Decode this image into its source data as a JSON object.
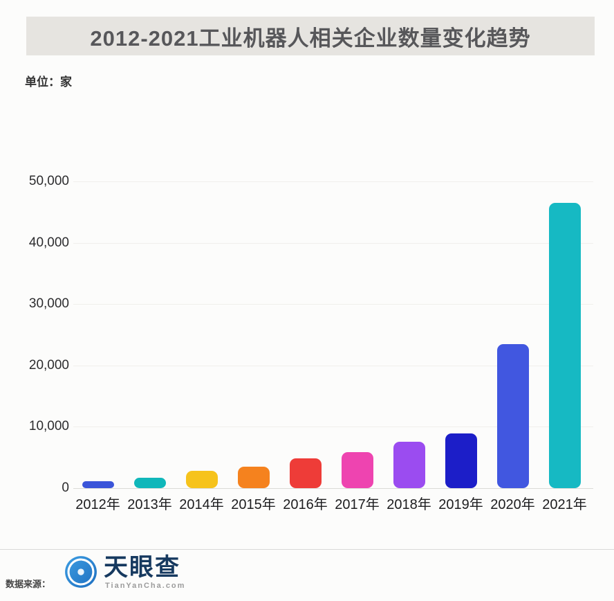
{
  "chart_data": {
    "type": "bar",
    "title": "2012-2021工业机器人相关企业数量变化趋势",
    "unit_label": "单位：家",
    "xlabel": "",
    "ylabel": "单位：家",
    "categories": [
      "2012年",
      "2013年",
      "2014年",
      "2015年",
      "2016年",
      "2017年",
      "2018年",
      "2019年",
      "2020年",
      "2021年"
    ],
    "values": [
      1100,
      1700,
      2800,
      3500,
      4900,
      5900,
      7600,
      8900,
      23500,
      46500
    ],
    "colors": [
      "#3b55d9",
      "#10b7ba",
      "#f6c31c",
      "#f5821e",
      "#ee3c38",
      "#ee44b0",
      "#9b4cf0",
      "#1c1ec8",
      "#4157e0",
      "#16b9c3"
    ],
    "ylim": [
      0,
      50000
    ],
    "yticks": [
      "50,000",
      "40,000",
      "30,000",
      "20,000",
      "10,000",
      "0"
    ],
    "grid": "horizontal, faint",
    "legend": "none"
  },
  "footer": {
    "source_label": "数据来源：",
    "brand_name": "天眼查",
    "brand_domain": "TianYanCha.com",
    "logo_color": "#2a85d0"
  }
}
